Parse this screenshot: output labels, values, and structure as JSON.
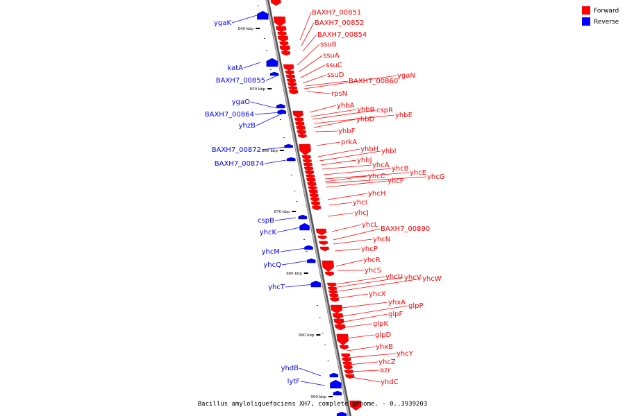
{
  "caption": "Bacillus amyloliquefaciens XH7, complete genome. - 0..3939203",
  "colors": {
    "forward": "#ff0000",
    "reverse": "#0000ff",
    "backbone": "#888888"
  },
  "legend": [
    {
      "label": "Forward",
      "color": "#ff0000"
    },
    {
      "label": "Reverse",
      "color": "#0000ff"
    }
  ],
  "ticks": [
    "840 kbp",
    "850 kbp",
    "860 kbp",
    "870 kbp",
    "880 kbp",
    "890 kbp",
    "900 kbp"
  ],
  "genes_forward": [
    "BAXH7_00851",
    "BAXH7_00852",
    "BAXH7_00854",
    "ssuB",
    "ssuA",
    "ssuC",
    "ssuD",
    "BAXH7_00860",
    "ygaN",
    "rpsN",
    "yhbA",
    "yhbB",
    "cspR",
    "yhbE",
    "yhbD",
    "yhbF",
    "prkA",
    "yhbH",
    "yhbI",
    "yhbJ",
    "yhcA",
    "yhcB",
    "yhcE",
    "yhcG",
    "yhcC",
    "yhcF",
    "yhcH",
    "yhcI",
    "yhcJ",
    "yhcL",
    "BAXH7_00890",
    "yhcN",
    "yhcP",
    "yhcR",
    "yhcS",
    "yhcU",
    "yhcV",
    "yhcW",
    "yhcX",
    "yhxA",
    "glpP",
    "glpF",
    "glpK",
    "glpD",
    "yhxB",
    "yhcY",
    "yhcZ",
    "azr",
    "yhdC"
  ],
  "genes_reverse": [
    "ygaK",
    "katA",
    "BAXH7_00855",
    "ygaO",
    "BAXH7_00864",
    "yhzB",
    "BAXH7_00872",
    "BAXH7_00874",
    "cspB",
    "yhcK",
    "yhcM",
    "yhcQ",
    "yhcT",
    "yhdB",
    "lytF"
  ]
}
